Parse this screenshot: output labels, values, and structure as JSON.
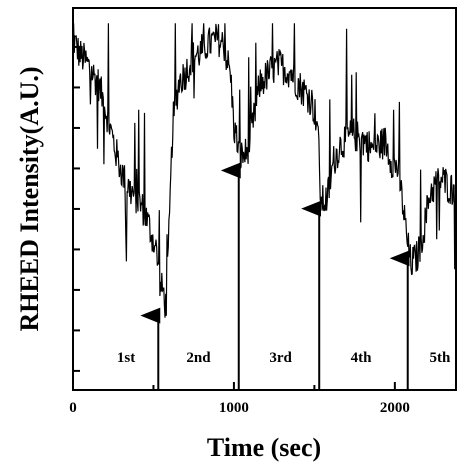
{
  "chart_data": {
    "type": "line",
    "title": "",
    "xlabel": "Time (sec)",
    "ylabel": "RHEED Intensity(A.U.)",
    "xlim": [
      0,
      2380
    ],
    "ylim": [
      0,
      1
    ],
    "xticks": [
      0,
      1000,
      2000
    ],
    "xtick_labels": [
      "0",
      "1000",
      "2000"
    ],
    "yticks": [
      0.05,
      0.156,
      0.262,
      0.368,
      0.474,
      0.58,
      0.686,
      0.792,
      0.898
    ],
    "grid": false,
    "legend": "none",
    "series": [
      {
        "color": "#000000",
        "x": [
          0,
          40,
          80,
          120,
          160,
          200,
          240,
          280,
          320,
          360,
          400,
          440,
          480,
          520,
          540,
          560,
          580,
          600,
          620,
          660,
          700,
          740,
          780,
          820,
          860,
          900,
          940,
          980,
          1000,
          1040,
          1080,
          1120,
          1160,
          1200,
          1240,
          1280,
          1320,
          1360,
          1400,
          1440,
          1480,
          1520,
          1540,
          1580,
          1620,
          1660,
          1700,
          1740,
          1780,
          1820,
          1860,
          1900,
          1940,
          1980,
          2020,
          2060,
          2080,
          2100,
          2140,
          2180,
          2220,
          2260,
          2300,
          2340,
          2380
        ],
        "y": [
          0.92,
          0.88,
          0.86,
          0.83,
          0.8,
          0.74,
          0.67,
          0.6,
          0.55,
          0.52,
          0.5,
          0.47,
          0.42,
          0.36,
          0.27,
          0.26,
          0.21,
          0.45,
          0.7,
          0.81,
          0.83,
          0.87,
          0.88,
          0.9,
          0.91,
          0.92,
          0.9,
          0.82,
          0.69,
          0.61,
          0.62,
          0.7,
          0.8,
          0.82,
          0.84,
          0.85,
          0.84,
          0.83,
          0.8,
          0.78,
          0.76,
          0.7,
          0.49,
          0.5,
          0.6,
          0.64,
          0.66,
          0.67,
          0.66,
          0.65,
          0.63,
          0.64,
          0.65,
          0.6,
          0.58,
          0.45,
          0.38,
          0.33,
          0.35,
          0.42,
          0.52,
          0.54,
          0.55,
          0.53,
          0.52
        ]
      }
    ],
    "annotations": [
      {
        "label": "1st",
        "x": 330
      },
      {
        "label": "2nd",
        "x": 780
      },
      {
        "label": "3rd",
        "x": 1290
      },
      {
        "label": "4th",
        "x": 1790
      },
      {
        "label": "5th",
        "x": 2280
      }
    ],
    "arrows": [
      {
        "x": 530,
        "y_tip": 0.2
      },
      {
        "x": 1030,
        "y_tip": 0.58
      },
      {
        "x": 1530,
        "y_tip": 0.48
      },
      {
        "x": 2080,
        "y_tip": 0.35
      }
    ]
  }
}
